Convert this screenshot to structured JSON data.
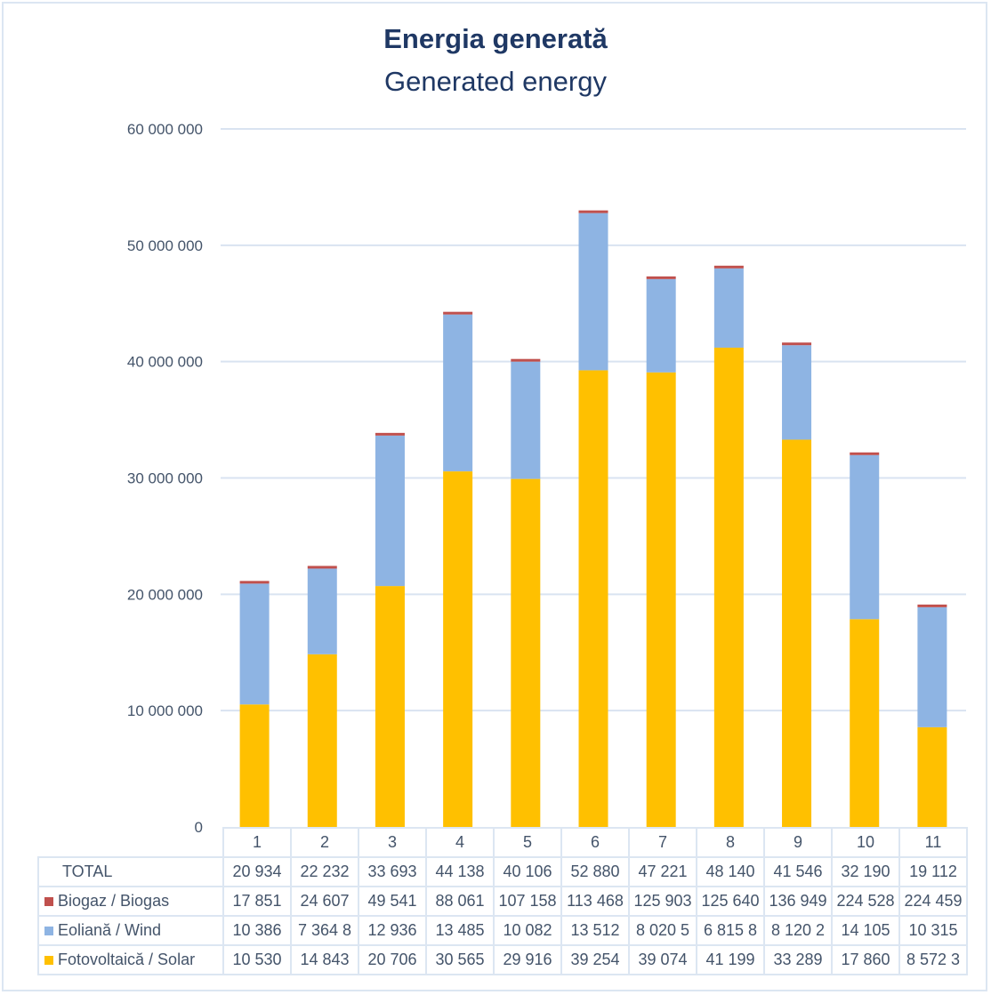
{
  "chart_data": {
    "type": "bar",
    "stacked": true,
    "title": "Energia generată",
    "subtitle": "Generated energy",
    "xlabel": "",
    "ylabel": "",
    "ylim": [
      0,
      60000000
    ],
    "yticks": [
      0,
      10000000,
      20000000,
      30000000,
      40000000,
      50000000,
      60000000
    ],
    "ytick_labels": [
      "0",
      "10 000 000",
      "20 000 000",
      "30 000 000",
      "40 000 000",
      "50 000 000",
      "60 000 000"
    ],
    "grid": true,
    "categories": [
      "1",
      "2",
      "3",
      "4",
      "5",
      "6",
      "7",
      "8",
      "9",
      "10",
      "11"
    ],
    "series": [
      {
        "name": "Fotovoltaică / Solar",
        "color": "#ffc000",
        "values": [
          10530000,
          14843000,
          20706000,
          30565000,
          29916000,
          39254000,
          39074000,
          41199000,
          33289000,
          17860000,
          8572300
        ]
      },
      {
        "name": "Eoliană / Wind",
        "color": "#8eb4e3",
        "values": [
          10386000,
          7364800,
          12936000,
          13485000,
          10082000,
          13512000,
          8020500,
          6815800,
          8120200,
          14105000,
          10315000
        ]
      },
      {
        "name": "Biogaz / Biogas",
        "color": "#c0504d",
        "values": [
          17851,
          24607,
          49541,
          88061,
          107158,
          113468,
          125903,
          125640,
          136949,
          224528,
          224459
        ]
      }
    ],
    "data_table": {
      "rows": [
        {
          "label": "TOTAL",
          "values": [
            "20 934",
            "22 232",
            "33 693",
            "44 138",
            "40 106",
            "52 880",
            "47 221",
            "48 140",
            "41 546",
            "32 190",
            "19 112"
          ]
        },
        {
          "label": "Biogaz / Biogas",
          "color": "#c0504d",
          "values": [
            "17 851",
            "24 607",
            "49 541",
            "88 061",
            "107 158",
            "113 468",
            "125 903",
            "125 640",
            "136 949",
            "224 528",
            "224 459"
          ]
        },
        {
          "label": "Eoliană / Wind",
          "color": "#8eb4e3",
          "values": [
            "10 386",
            "7 364 8",
            "12 936",
            "13 485",
            "10 082",
            "13 512",
            "8 020 5",
            "6 815 8",
            "8 120 2",
            "14 105",
            "10 315"
          ]
        },
        {
          "label": "Fotovoltaică / Solar",
          "color": "#ffc000",
          "values": [
            "10 530",
            "14 843",
            "20 706",
            "30 565",
            "29 916",
            "39 254",
            "39 074",
            "41 199",
            "33 289",
            "17 860",
            "8 572 3"
          ]
        }
      ]
    },
    "legend": "data-table-left"
  }
}
